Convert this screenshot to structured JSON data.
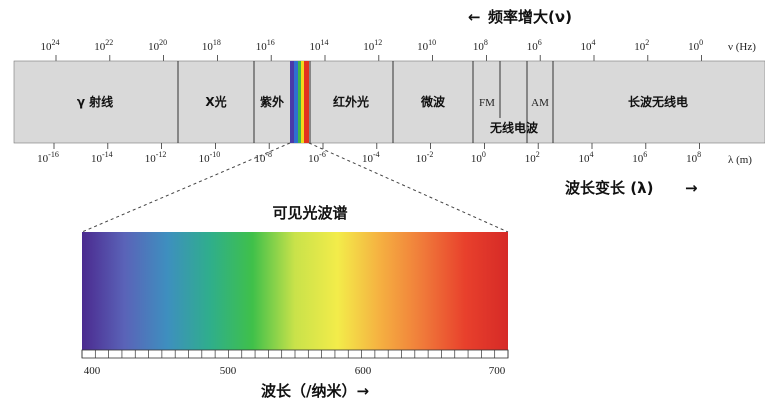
{
  "frequency_label": "频率增大(ν)",
  "frequency_arrow": "←",
  "frequency_unit": "ν (Hz)",
  "frequency_ticks": [
    {
      "base": "10",
      "exp": "24"
    },
    {
      "base": "10",
      "exp": "22"
    },
    {
      "base": "10",
      "exp": "20"
    },
    {
      "base": "10",
      "exp": "18"
    },
    {
      "base": "10",
      "exp": "16"
    },
    {
      "base": "10",
      "exp": "14"
    },
    {
      "base": "10",
      "exp": "12"
    },
    {
      "base": "10",
      "exp": "10"
    },
    {
      "base": "10",
      "exp": "8"
    },
    {
      "base": "10",
      "exp": "6"
    },
    {
      "base": "10",
      "exp": "4"
    },
    {
      "base": "10",
      "exp": "2"
    },
    {
      "base": "10",
      "exp": "0"
    }
  ],
  "wavelength_unit": "λ (m)",
  "wavelength_ticks": [
    {
      "base": "10",
      "exp": "-16"
    },
    {
      "base": "10",
      "exp": "-14"
    },
    {
      "base": "10",
      "exp": "-12"
    },
    {
      "base": "10",
      "exp": "-10"
    },
    {
      "base": "10",
      "exp": "-8"
    },
    {
      "base": "10",
      "exp": "-6"
    },
    {
      "base": "10",
      "exp": "-4"
    },
    {
      "base": "10",
      "exp": "-2"
    },
    {
      "base": "10",
      "exp": "0"
    },
    {
      "base": "10",
      "exp": "2"
    },
    {
      "base": "10",
      "exp": "4"
    },
    {
      "base": "10",
      "exp": "6"
    },
    {
      "base": "10",
      "exp": "8"
    }
  ],
  "wavelength_label": "波长变长 (λ)",
  "wavelength_arrow": "→",
  "regions": {
    "gamma": "γ 射线",
    "xray": "X光",
    "uv": "紫外",
    "ir": "红外光",
    "microwave": "微波",
    "fm": "FM",
    "am": "AM",
    "radio": "无线电波",
    "long_wave": "长波无线电"
  },
  "visible_title": "可见光波谱",
  "visible_ticks": [
    "400",
    "500",
    "600",
    "700"
  ],
  "visible_axis_label": "波长（/纳米）→",
  "colors": {
    "band": "#d9d9d9",
    "band_border": "#555555",
    "spectrum_stops": [
      "#4b2a8f",
      "#5a63b8",
      "#3e8fbf",
      "#2fae8c",
      "#3fc04a",
      "#c9e24a",
      "#f3ec4a",
      "#f5b041",
      "#f07a3a",
      "#e8402c",
      "#d62a27"
    ]
  }
}
